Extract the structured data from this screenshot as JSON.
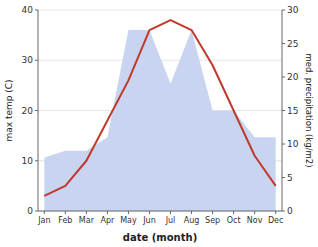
{
  "chart_data": {
    "type": "line",
    "categories": [
      "Jan",
      "Feb",
      "Mar",
      "Apr",
      "May",
      "Jun",
      "Jul",
      "Aug",
      "Sep",
      "Oct",
      "Nov",
      "Dec"
    ],
    "series": [
      {
        "type": "area",
        "color": "#c8d4f0",
        "axis": "y2",
        "values": [
          8,
          9,
          9,
          11,
          27,
          27,
          19,
          27,
          15,
          15,
          11,
          11
        ]
      },
      {
        "type": "line",
        "color": "#c0392b",
        "values": [
          3,
          5,
          10,
          18,
          26,
          36,
          38,
          36,
          29,
          20,
          11,
          5
        ]
      }
    ],
    "xlabel": "date (month)",
    "ylabel": "max temp (C)",
    "y2label": "med. precipitation (kg/m2)",
    "ylim": [
      0,
      40
    ],
    "yticks": [
      0,
      10,
      20,
      30,
      40
    ],
    "y2lim": [
      0,
      30
    ],
    "y2ticks": [
      0,
      5,
      10,
      15,
      20,
      25,
      30
    ],
    "grid": true
  }
}
